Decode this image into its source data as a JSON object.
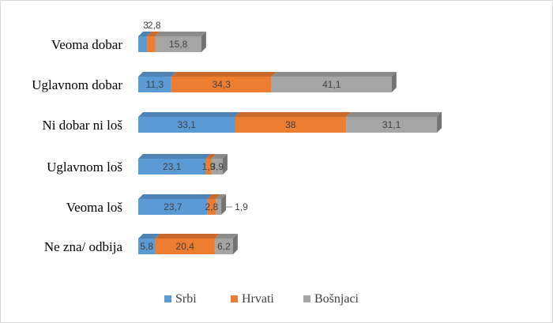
{
  "chart_data": {
    "type": "bar",
    "orientation": "horizontal",
    "stacked": true,
    "three_d": true,
    "title": "",
    "xlabel": "",
    "ylabel": "",
    "categories": [
      "Veoma dobar",
      "Uglavnom dobar",
      "Ni dobar ni loš",
      "Uglavnom loš",
      "Veoma loš",
      "Ne zna/ odbija"
    ],
    "series": [
      {
        "name": "Srbi",
        "color": "#5b9bd5",
        "values": [
          3,
          11.3,
          33.1,
          23.1,
          23.7,
          5.8
        ],
        "labels": [
          "3",
          "11,3",
          "33,1",
          "23,1",
          "23,7",
          "5,8"
        ]
      },
      {
        "name": "Hrvati",
        "color": "#ed7d31",
        "values": [
          2.8,
          34.3,
          38,
          1.9,
          2.8,
          20.4
        ],
        "labels": [
          "2,8",
          "34,3",
          "38",
          "1,9",
          "2,8",
          "20,4"
        ]
      },
      {
        "name": "Bošnjaci",
        "color": "#a5a5a5",
        "values": [
          15.8,
          41.1,
          31.1,
          3.9,
          1.9,
          6.2
        ],
        "labels": [
          "15,8",
          "41,1",
          "31,1",
          "3,9",
          "1,9",
          "6,2"
        ]
      }
    ],
    "xlim": [
      0,
      100
    ],
    "grid": false,
    "legend": "bottom"
  }
}
